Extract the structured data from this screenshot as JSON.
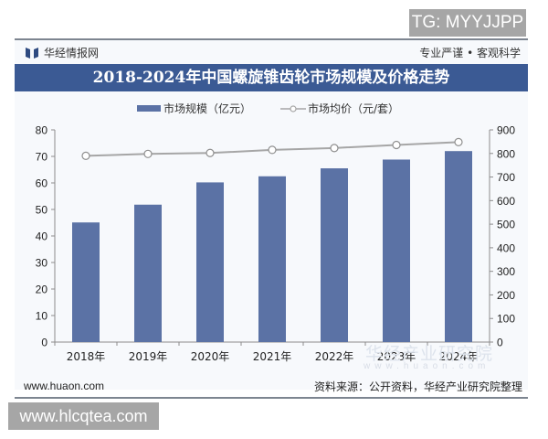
{
  "overlay": {
    "tg_badge": "TG: MYYJJPP",
    "site_badge": "www.hlcqtea.com"
  },
  "header": {
    "brand_name": "华经情报网",
    "slogan": "专业严谨 • 客观科学",
    "title": "2018-2024年中国螺旋锥齿轮市场规模及价格走势"
  },
  "legend": {
    "bar_label": "市场规模（亿元）",
    "line_label": "市场均价（元/套）"
  },
  "footer": {
    "website": "www.huaon.com",
    "source": "资料来源：公开资料，华经产业研究院整理"
  },
  "watermark": {
    "text": "华经产业研究院",
    "url": "www.huaon.com"
  },
  "colors": {
    "title_bar": "#3b5a94",
    "bar": "#5b72a5",
    "line": "#a6a6a6",
    "background": "#f7f9fc"
  },
  "chart_data": {
    "type": "bar+line",
    "title": "2018-2024年中国螺旋锥齿轮市场规模及价格走势",
    "categories": [
      "2018年",
      "2019年",
      "2020年",
      "2021年",
      "2022年",
      "2023年",
      "2024年"
    ],
    "series": [
      {
        "name": "市场规模（亿元）",
        "type": "bar",
        "axis": "left",
        "values": [
          45.1,
          51.8,
          60.2,
          62.5,
          65.5,
          68.8,
          72.0
        ]
      },
      {
        "name": "市场均价（元/套）",
        "type": "line",
        "axis": "right",
        "values": [
          790,
          798,
          802,
          815,
          823,
          836,
          848
        ]
      }
    ],
    "left_axis": {
      "label": "",
      "ylim": [
        0,
        80
      ],
      "ticks": [
        0,
        10,
        20,
        30,
        40,
        50,
        60,
        70,
        80
      ]
    },
    "right_axis": {
      "label": "",
      "ylim": [
        0,
        900
      ],
      "ticks": [
        0,
        100,
        200,
        300,
        400,
        500,
        600,
        700,
        800,
        900
      ]
    },
    "xlabel": "",
    "grid": false,
    "legend_position": "top"
  }
}
